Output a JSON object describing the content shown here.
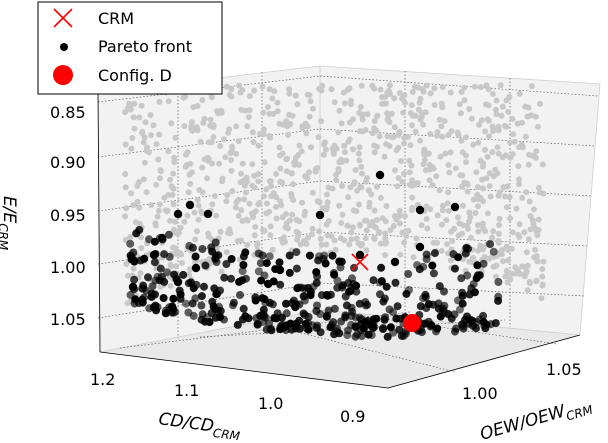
{
  "chart_data": {
    "type": "scatter",
    "projection": "3d",
    "title": "",
    "axes": {
      "x": {
        "label_main": "CD/CD",
        "label_sub": "CRM",
        "ticks": [
          "1.2",
          "1.1",
          "1.0",
          "0.9"
        ],
        "range": [
          0.88,
          1.22
        ]
      },
      "y": {
        "label_main": "OEW/OEW",
        "label_sub": "CRM",
        "ticks": [
          "1.00",
          "1.05"
        ],
        "range": [
          0.95,
          1.08
        ]
      },
      "z": {
        "label_main": "E/E",
        "label_sub": "CRM",
        "ticks": [
          "0.85",
          "0.90",
          "0.95",
          "1.00",
          "1.05"
        ],
        "range": [
          0.83,
          1.08
        ],
        "inverted": true
      }
    },
    "grid": true,
    "legend": {
      "placement": "top-left",
      "entries": [
        {
          "label": "CRM",
          "marker": "x",
          "color": "#ff0000"
        },
        {
          "label": "Pareto front",
          "marker": "dot",
          "color": "#000000"
        },
        {
          "label": "Config. D",
          "marker": "big-dot",
          "color": "#ff0000"
        }
      ]
    },
    "series": [
      {
        "name": "CRM",
        "marker": "x",
        "color": "#ff0000",
        "points": [
          {
            "x": 1.0,
            "y": 1.0,
            "z": 1.0
          }
        ]
      },
      {
        "name": "Config. D",
        "marker": "big-dot",
        "color": "#ff0000",
        "points": [
          {
            "x": 0.93,
            "y": 1.025,
            "z": 1.06
          }
        ]
      }
    ],
    "population_color": "#c8c8c8",
    "pareto_color": "#000000"
  }
}
